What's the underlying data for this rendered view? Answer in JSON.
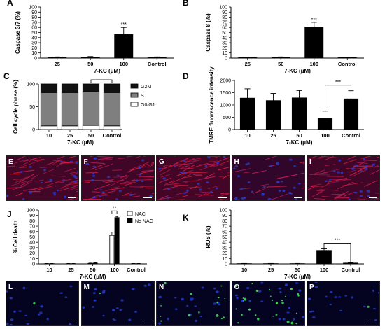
{
  "chart_data": [
    {
      "panel": "A",
      "type": "bar",
      "categories": [
        "25",
        "50",
        "100",
        "Control"
      ],
      "values": [
        1.5,
        2,
        46,
        1.5
      ],
      "errors": [
        0.8,
        1,
        14,
        0.8
      ],
      "ylabel": "Caspase 3/7 (%)",
      "xlabel": "7-KC (μM)",
      "ylim": [
        0,
        100
      ],
      "yticks": [
        0,
        10,
        20,
        30,
        40,
        50,
        60,
        70,
        80,
        90,
        100
      ],
      "significance": [
        {
          "category": "100",
          "text": "***"
        }
      ]
    },
    {
      "panel": "B",
      "type": "bar",
      "categories": [
        "25",
        "50",
        "100",
        "Control"
      ],
      "values": [
        1,
        1.5,
        61,
        1
      ],
      "errors": [
        0.5,
        0.8,
        9,
        0.5
      ],
      "ylabel": "Caspase 8 (%)",
      "xlabel": "7-KC (μM)",
      "ylim": [
        0,
        100
      ],
      "yticks": [
        0,
        10,
        20,
        30,
        40,
        50,
        60,
        70,
        80,
        90,
        100
      ],
      "significance": [
        {
          "category": "100",
          "text": "***"
        }
      ]
    },
    {
      "panel": "C",
      "type": "bar",
      "stacked": true,
      "categories": [
        "10",
        "25",
        "50",
        "Control"
      ],
      "series": [
        {
          "name": "G0/G1",
          "values": [
            8,
            8,
            9,
            8
          ],
          "color": "#ffffff"
        },
        {
          "name": "S",
          "values": [
            73,
            73,
            75,
            73
          ],
          "color": "#7f7f7f"
        },
        {
          "name": "G2M",
          "values": [
            19,
            19,
            16,
            19
          ],
          "color": "#111111"
        }
      ],
      "ylabel": "Cell cycle phase (%)",
      "xlabel": "7-KC (μM)",
      "ylim": [
        0,
        100
      ],
      "yticks": [
        0,
        50,
        100
      ],
      "bracket": [
        "50",
        "Control"
      ]
    },
    {
      "panel": "D",
      "type": "bar",
      "categories": [
        "10",
        "25",
        "50",
        "100",
        "Control"
      ],
      "values": [
        1280,
        1180,
        1290,
        470,
        1250
      ],
      "errors": [
        380,
        290,
        300,
        280,
        330
      ],
      "ylabel": "TMRE fluorescence intensity",
      "xlabel": "7-KC (μM)",
      "ylim": [
        0,
        2000
      ],
      "yticks": [
        0,
        500,
        1000,
        1500,
        2000
      ],
      "significance": [
        {
          "from": "100",
          "to": "Control",
          "text": "***"
        }
      ]
    },
    {
      "panel": "J",
      "type": "bar",
      "categories": [
        "10",
        "25",
        "50",
        "100",
        "Control"
      ],
      "series": [
        {
          "name": "NAC",
          "values": [
            0.5,
            0.5,
            1,
            53,
            0.5
          ],
          "errors": [
            0.3,
            0.3,
            0.5,
            6,
            0.3
          ],
          "color": "#ffffff"
        },
        {
          "name": "No NAC",
          "values": [
            0.5,
            0.5,
            1.5,
            86,
            0.5
          ],
          "errors": [
            0.3,
            0.3,
            0.5,
            2,
            0.3
          ],
          "color": "#000000"
        }
      ],
      "ylabel": "% Cell death",
      "xlabel": "7-KC (μM)",
      "ylim": [
        0,
        100
      ],
      "yticks": [
        0,
        10,
        20,
        30,
        40,
        50,
        60,
        70,
        80,
        90,
        100
      ],
      "legend": "top-right",
      "significance": [
        {
          "category": "100",
          "text": "**"
        }
      ]
    },
    {
      "panel": "K",
      "type": "bar",
      "categories": [
        "10",
        "25",
        "50",
        "100",
        "Control"
      ],
      "values": [
        0.5,
        0.5,
        0.5,
        25,
        1.5
      ],
      "errors": [
        0.3,
        0.3,
        0.3,
        3,
        0.5
      ],
      "ylabel": "ROS (%)",
      "xlabel": "7-KC (μM)",
      "ylim": [
        0,
        100
      ],
      "yticks": [
        0,
        10,
        20,
        30,
        40,
        50,
        60,
        70,
        80,
        90,
        100
      ],
      "significance": [
        {
          "from": "100",
          "to": "Control",
          "text": "***"
        }
      ]
    }
  ],
  "micrographs": [
    {
      "label": "E",
      "scale": "100 μm",
      "red": 0.85,
      "blue": 0.55,
      "green": 0
    },
    {
      "label": "F",
      "scale": "100 μm",
      "red": 0.8,
      "blue": 0.55,
      "green": 0
    },
    {
      "label": "G",
      "scale": "100 μm",
      "red": 0.9,
      "blue": 0.5,
      "green": 0
    },
    {
      "label": "H",
      "scale": "100 μm",
      "red": 0.25,
      "blue": 0.75,
      "green": 0
    },
    {
      "label": "I",
      "scale": "100 μm",
      "red": 0.8,
      "blue": 0.55,
      "green": 0
    },
    {
      "label": "L",
      "scale": "100 μm",
      "red": 0,
      "blue": 0.5,
      "green": 0.02
    },
    {
      "label": "M",
      "scale": "100 μm",
      "red": 0,
      "blue": 0.5,
      "green": 0.02
    },
    {
      "label": "N",
      "scale": "100 μm",
      "red": 0,
      "blue": 0.5,
      "green": 0.35
    },
    {
      "label": "O",
      "scale": "100 μm",
      "red": 0,
      "blue": 0.55,
      "green": 0.7
    },
    {
      "label": "P",
      "scale": "100 μm",
      "red": 0,
      "blue": 0.5,
      "green": 0.03
    }
  ]
}
